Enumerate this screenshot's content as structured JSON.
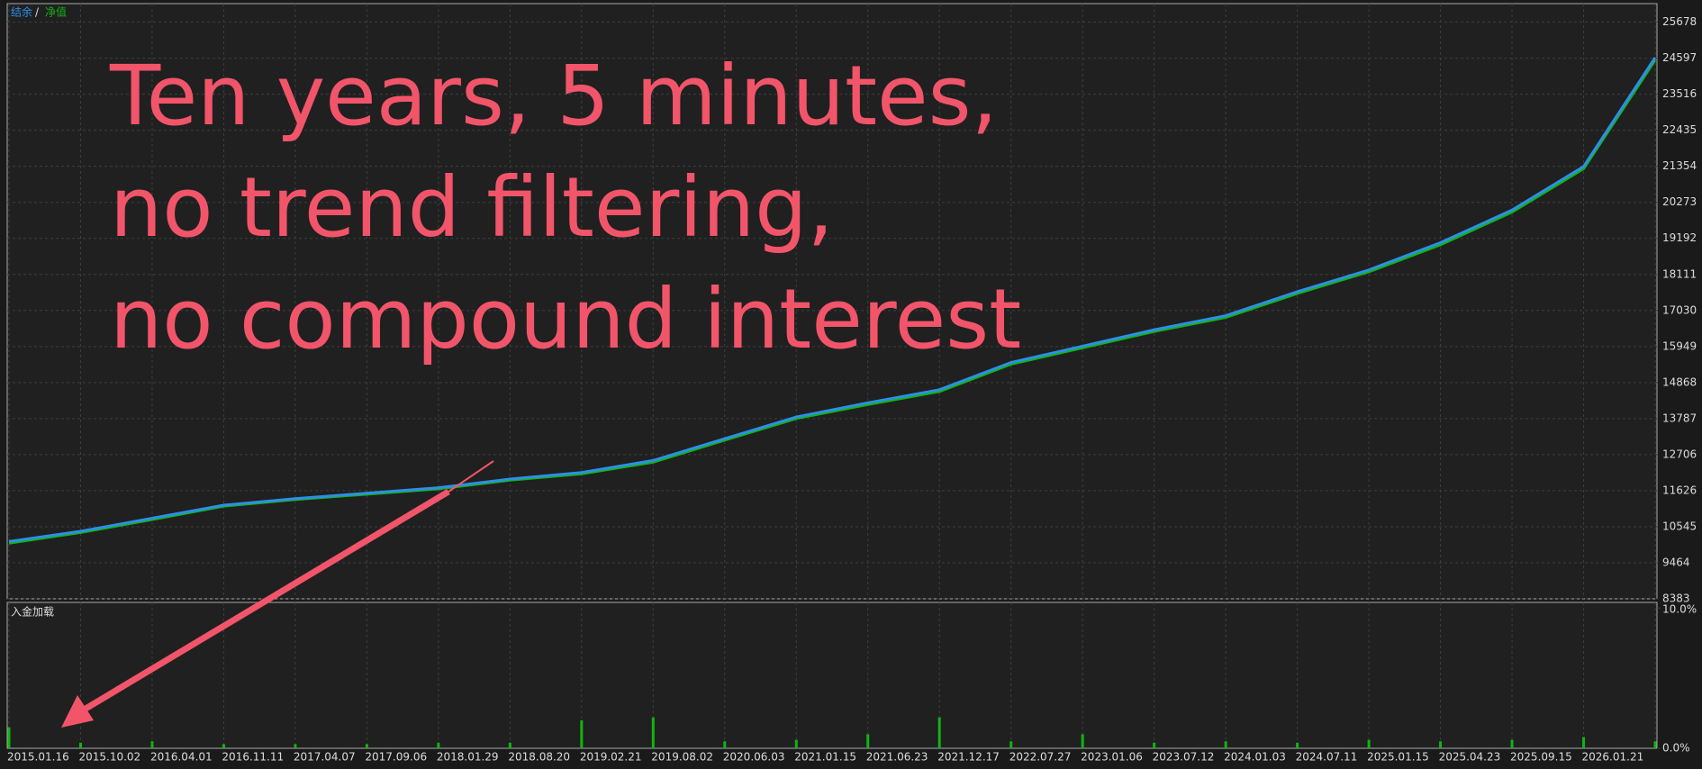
{
  "chart_data": [
    {
      "type": "line",
      "legend_separator": "/",
      "annotations": [
        "Ten years, 5 minutes,",
        "no trend filtering,",
        "no compound interest"
      ],
      "categories": [
        "2015.01.16",
        "2015.10.02",
        "2016.04.01",
        "2016.11.11",
        "2017.04.07",
        "2017.09.06",
        "2018.01.29",
        "2018.08.20",
        "2019.02.21",
        "2019.08.02",
        "2020.06.03",
        "2021.01.15",
        "2021.06.23",
        "2021.12.17",
        "2022.07.27",
        "2023.01.06",
        "2023.07.12",
        "2024.01.03",
        "2024.07.11",
        "2025.01.15",
        "2025.04.23",
        "2025.09.15",
        "2026.01.21",
        null
      ],
      "series": [
        {
          "name": "结余",
          "color": "#2e8fe6",
          "values": [
            10100,
            10408,
            10800,
            11192,
            11388,
            11551,
            11714,
            11975,
            12171,
            12531,
            13184,
            13837,
            14262,
            14653,
            15470,
            15960,
            16450,
            16874,
            17593,
            18246,
            19062,
            20042,
            21348,
            24614
          ]
        },
        {
          "name": "净值",
          "color": "#12b312",
          "values": [
            10050,
            10370,
            10760,
            11160,
            11360,
            11520,
            11680,
            11940,
            12130,
            12480,
            13140,
            13790,
            14210,
            14600,
            15420,
            15910,
            16400,
            16820,
            17540,
            18190,
            19000,
            19980,
            21280,
            24540
          ]
        }
      ],
      "ylim": [
        8383,
        26233
      ],
      "yticks": [
        8383,
        9464,
        10545,
        11626,
        12706,
        13787,
        14868,
        15949,
        17030,
        18111,
        19192,
        20273,
        21354,
        22435,
        23516,
        24597,
        25678
      ],
      "grid": true
    },
    {
      "type": "bar",
      "title": "入金加载",
      "color": "#12b312",
      "values": [
        1.5,
        0.4,
        0.5,
        0.3,
        0.3,
        0.3,
        0.4,
        0.4,
        2,
        2.2,
        0.5,
        0.6,
        1,
        2.2,
        0.5,
        1,
        0.4,
        0.5,
        0.4,
        0.6,
        0.5,
        0.6,
        0.8,
        0.5
      ],
      "ylim": [
        0,
        10.4
      ],
      "yticks": [
        {
          "value": 0,
          "label": "0.0%"
        },
        {
          "value": 10,
          "label": "10.0%"
        }
      ]
    }
  ]
}
